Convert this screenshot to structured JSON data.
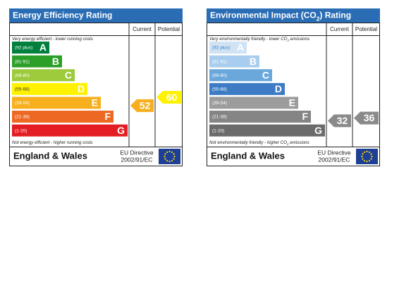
{
  "panels": [
    {
      "title_parts": [
        "Energy Efficiency Rating"
      ],
      "columns": [
        "Current",
        "Potential"
      ],
      "top_note_parts": [
        "Very energy efficient - lower running costs"
      ],
      "bands": [
        {
          "range": "(92 plus)",
          "letter": "A"
        },
        {
          "range": "(81-91)",
          "letter": "B"
        },
        {
          "range": "(69-80)",
          "letter": "C"
        },
        {
          "range": "(55-68)",
          "letter": "D"
        },
        {
          "range": "(39-54)",
          "letter": "E"
        },
        {
          "range": "(21-38)",
          "letter": "F"
        },
        {
          "range": "(1-20)",
          "letter": "G"
        }
      ],
      "bottom_note_parts": [
        "Not energy efficient - higher running costs"
      ],
      "current": 52,
      "potential": 60,
      "region": "England & Wales",
      "directive": [
        "EU Directive",
        "2002/91/EC"
      ]
    },
    {
      "title_parts": [
        "Environmental Impact (CO",
        "2",
        ") Rating"
      ],
      "columns": [
        "Current",
        "Potential"
      ],
      "top_note_parts": [
        "Very environmentally friendly - lower CO",
        "2",
        " emissions"
      ],
      "bands": [
        {
          "range": "(92 plus)",
          "letter": "A"
        },
        {
          "range": "(81-91)",
          "letter": "B"
        },
        {
          "range": "(69-80)",
          "letter": "C"
        },
        {
          "range": "(55-68)",
          "letter": "D"
        },
        {
          "range": "(39-54)",
          "letter": "E"
        },
        {
          "range": "(21-38)",
          "letter": "F"
        },
        {
          "range": "(1-20)",
          "letter": "G"
        }
      ],
      "bottom_note_parts": [
        "Not environmentally friendly - higher CO",
        "2",
        " emissions"
      ],
      "current": 32,
      "potential": 36,
      "region": "England & Wales",
      "directive": [
        "EU Directive",
        "2002/91/EC"
      ]
    }
  ]
}
